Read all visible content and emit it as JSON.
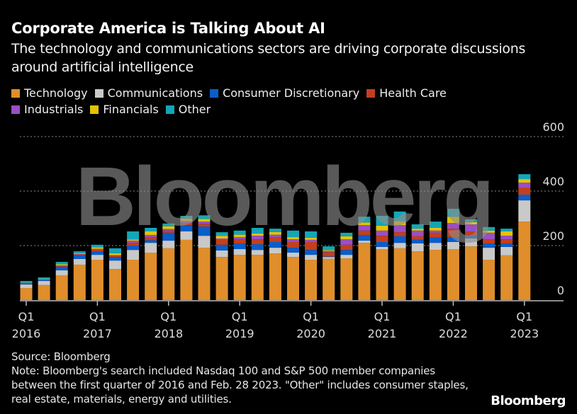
{
  "title": "Corporate America is Talking About AI",
  "subtitle": "The technology and communications sectors are driving corporate discussions around artificial intelligence",
  "source": "Source: Bloomberg",
  "note": "Note: Bloomberg's search included Nasdaq 100 and S&P 500 member companies between the first quarter of 2016 and Feb. 28 2023. \"Other\" includes consumer staples, real estate, materials, energy and utilities.",
  "logo": "Bloomberg",
  "watermark": "Bloomberg",
  "chart_data": {
    "type": "bar",
    "stacked": true,
    "title": "Corporate America is Talking About AI",
    "xlabel": "",
    "ylabel": "",
    "ylim": [
      0,
      600
    ],
    "yticks": [
      0,
      200,
      400,
      600
    ],
    "y_axis_side": "right",
    "grid": "dotted horizontal",
    "legend_placement": "top",
    "categories": [
      "Q1 2016",
      "Q2 2016",
      "Q3 2016",
      "Q4 2016",
      "Q1 2017",
      "Q2 2017",
      "Q3 2017",
      "Q4 2017",
      "Q1 2018",
      "Q2 2018",
      "Q3 2018",
      "Q4 2018",
      "Q1 2019",
      "Q2 2019",
      "Q3 2019",
      "Q4 2019",
      "Q1 2020",
      "Q2 2020",
      "Q3 2020",
      "Q4 2020",
      "Q1 2021",
      "Q2 2021",
      "Q3 2021",
      "Q4 2021",
      "Q1 2022",
      "Q2 2022",
      "Q3 2022",
      "Q4 2022",
      "Q1 2023"
    ],
    "xtick_labels": [
      {
        "category": "Q1 2016",
        "q": "Q1",
        "year": "2016"
      },
      {
        "category": "Q1 2017",
        "q": "Q1",
        "year": "2017"
      },
      {
        "category": "Q1 2018",
        "q": "Q1",
        "year": "2018"
      },
      {
        "category": "Q1 2019",
        "q": "Q1",
        "year": "2019"
      },
      {
        "category": "Q1 2020",
        "q": "Q1",
        "year": "2020"
      },
      {
        "category": "Q1 2021",
        "q": "Q1",
        "year": "2021"
      },
      {
        "category": "Q1 2022",
        "q": "Q1",
        "year": "2022"
      },
      {
        "category": "Q1 2023",
        "q": "Q1",
        "year": "2023"
      }
    ],
    "series": [
      {
        "name": "Technology",
        "color": "#e08e2b",
        "values": [
          44,
          55,
          91,
          130,
          148,
          114,
          148,
          174,
          190,
          221,
          192,
          158,
          166,
          166,
          171,
          158,
          148,
          151,
          153,
          210,
          187,
          190,
          179,
          184,
          187,
          197,
          148,
          164,
          288
        ]
      },
      {
        "name": "Communications",
        "color": "#c9c9c9",
        "values": [
          13,
          15,
          18,
          21,
          18,
          31,
          36,
          36,
          28,
          31,
          44,
          24,
          21,
          18,
          21,
          16,
          18,
          7,
          13,
          8,
          8,
          20,
          29,
          26,
          26,
          29,
          44,
          31,
          78
        ]
      },
      {
        "name": "Consumer Discretionary",
        "color": "#0a5ec9",
        "values": [
          2,
          3,
          13,
          13,
          13,
          13,
          16,
          10,
          29,
          23,
          34,
          21,
          21,
          21,
          21,
          18,
          18,
          2,
          18,
          21,
          18,
          24,
          13,
          19,
          18,
          13,
          16,
          13,
          21
        ]
      },
      {
        "name": "Health Care",
        "color": "#c33f1f",
        "values": [
          2,
          1,
          3,
          3,
          6,
          5,
          10,
          11,
          8,
          8,
          10,
          18,
          15,
          18,
          18,
          21,
          29,
          16,
          19,
          16,
          23,
          15,
          13,
          18,
          31,
          13,
          15,
          15,
          26
        ]
      },
      {
        "name": "Industrials",
        "color": "#9a4fc4",
        "values": [
          1,
          1,
          2,
          2,
          3,
          2,
          8,
          8,
          6,
          6,
          8,
          5,
          8,
          13,
          9,
          10,
          8,
          4,
          20,
          20,
          19,
          26,
          21,
          8,
          21,
          26,
          24,
          13,
          18
        ]
      },
      {
        "name": "Financials",
        "color": "#e5c300",
        "values": [
          1,
          2,
          4,
          3,
          6,
          7,
          4,
          13,
          10,
          10,
          10,
          10,
          9,
          8,
          10,
          8,
          8,
          3,
          11,
          10,
          18,
          15,
          7,
          10,
          23,
          8,
          8,
          16,
          13
        ]
      },
      {
        "name": "Other",
        "color": "#14a6b6",
        "values": [
          7,
          6,
          9,
          7,
          9,
          18,
          30,
          13,
          10,
          10,
          13,
          13,
          15,
          21,
          12,
          24,
          23,
          14,
          13,
          21,
          36,
          35,
          16,
          23,
          29,
          10,
          13,
          10,
          18
        ]
      }
    ]
  }
}
